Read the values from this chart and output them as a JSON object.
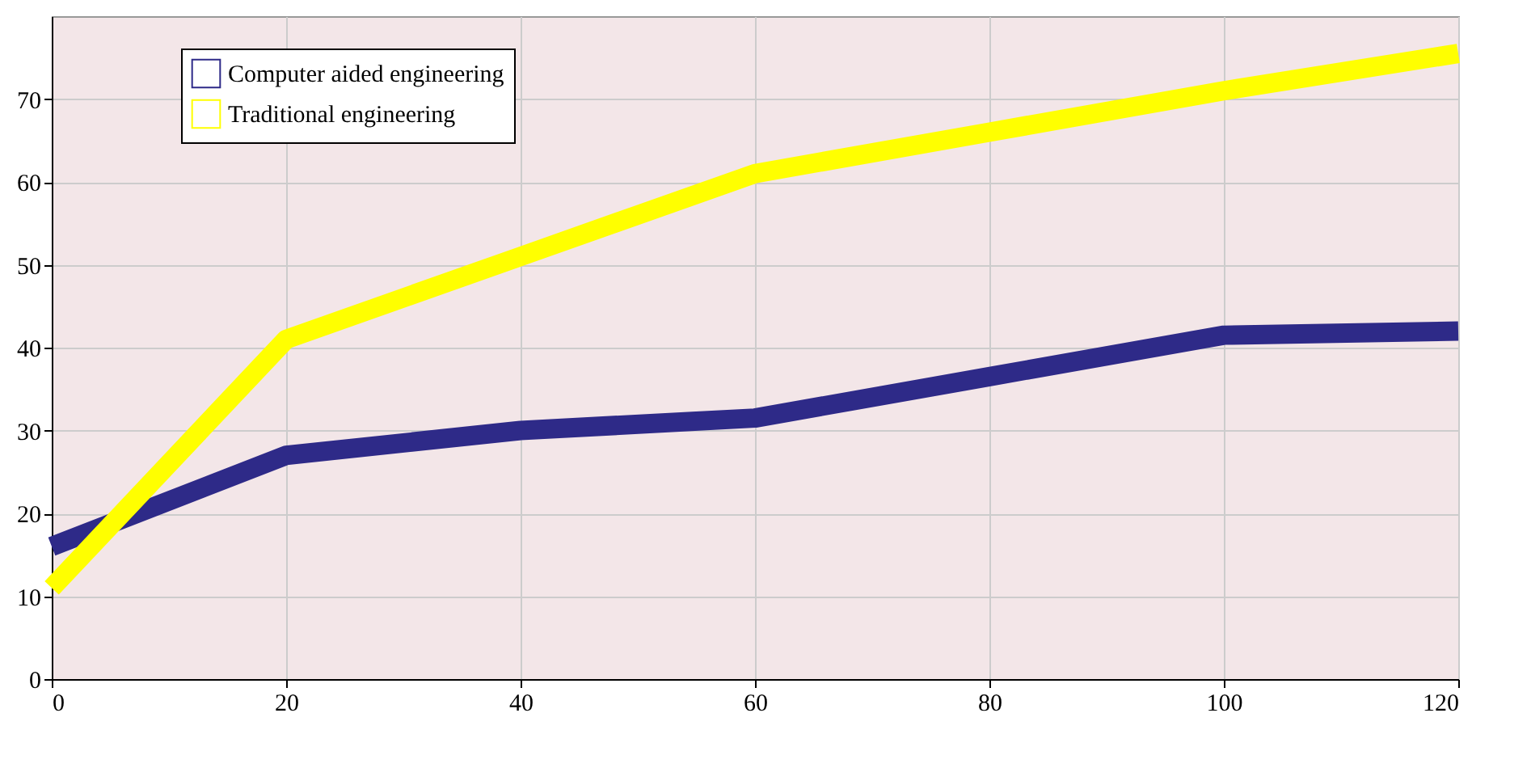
{
  "chart_data": {
    "type": "line",
    "x": [
      0,
      20,
      40,
      60,
      80,
      100,
      120
    ],
    "series": [
      {
        "name": "Computer aided engineering",
        "color": "#2e2a88",
        "values": [
          16,
          27,
          30,
          31.5,
          36.5,
          41.5,
          42
        ]
      },
      {
        "name": "Traditional engineering",
        "color": "#ffff00",
        "values": [
          11,
          41,
          51,
          61,
          66,
          71,
          75.5
        ]
      }
    ],
    "xlim": [
      0,
      120
    ],
    "xticks": [
      0,
      20,
      40,
      60,
      80,
      100,
      120
    ],
    "ylim": [
      0,
      80
    ],
    "yticks": [
      0,
      10,
      20,
      30,
      40,
      50,
      60,
      70
    ],
    "grid": true,
    "legend": "top left",
    "line_style": "solid",
    "marker": "none"
  }
}
